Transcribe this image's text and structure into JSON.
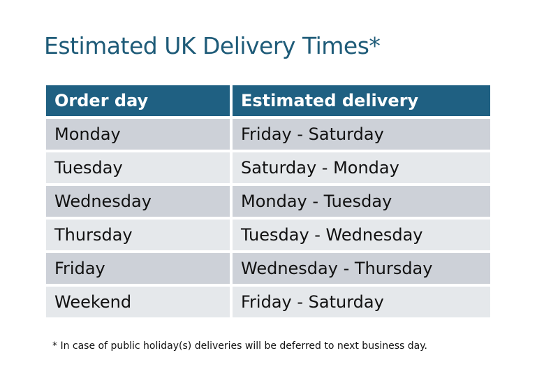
{
  "title": "Estimated UK Delivery Times*",
  "table": {
    "headers": [
      "Order day",
      "Estimated delivery"
    ],
    "rows": [
      [
        "Monday",
        "Friday - Saturday"
      ],
      [
        "Tuesday",
        "Saturday - Monday"
      ],
      [
        "Wednesday",
        "Monday - Tuesday"
      ],
      [
        "Thursday",
        "Tuesday - Wednesday"
      ],
      [
        "Friday",
        "Wednesday - Thursday"
      ],
      [
        "Weekend",
        "Friday - Saturday"
      ]
    ]
  },
  "footnote": "* In case of public holiday(s) deliveries will be deferred to next business day.",
  "colors": {
    "title": "#1e5b78",
    "header": "#1f6082",
    "row_dark": "#cdd1d8",
    "row_light": "#e5e8eb"
  }
}
